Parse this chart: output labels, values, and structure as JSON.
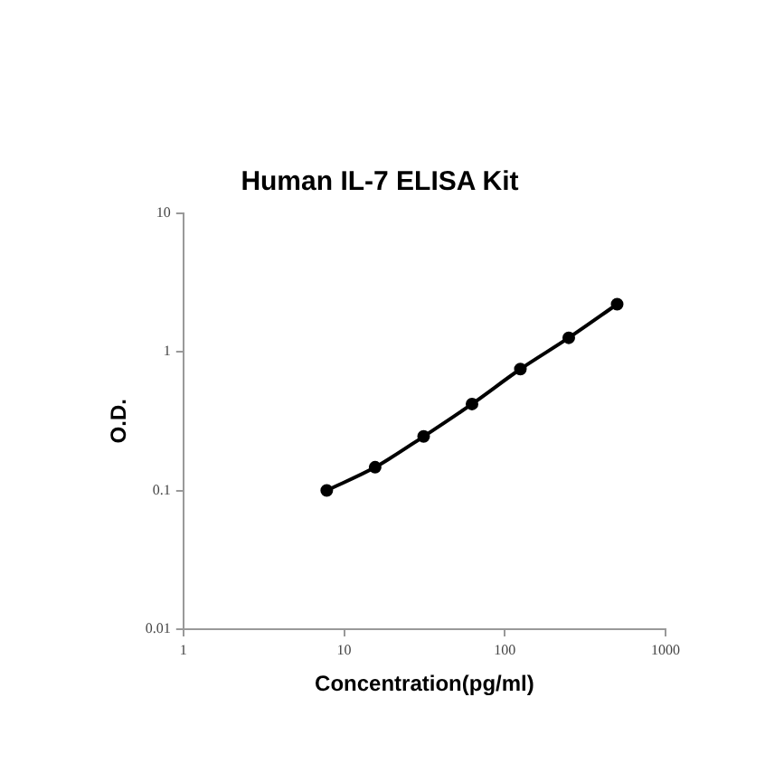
{
  "chart_data": {
    "type": "line",
    "title": "Human IL-7 ELISA Kit",
    "xlabel": "Concentration(pg/ml)",
    "ylabel": "O.D.",
    "x": [
      7.8,
      15.6,
      31.25,
      62.5,
      125,
      250,
      500
    ],
    "series": [
      {
        "color": "#000000",
        "values": [
          0.1,
          0.147,
          0.245,
          0.42,
          0.75,
          1.26,
          2.2
        ]
      }
    ],
    "xlim": [
      1,
      1000
    ],
    "xticks": [
      1,
      10,
      100,
      1000
    ],
    "ylim": [
      0.01,
      10
    ],
    "yticks": [
      0.01,
      0.1,
      1,
      10
    ],
    "log": "xy",
    "grid": false,
    "legend": false,
    "marker": "circle",
    "line_style": "solid"
  }
}
